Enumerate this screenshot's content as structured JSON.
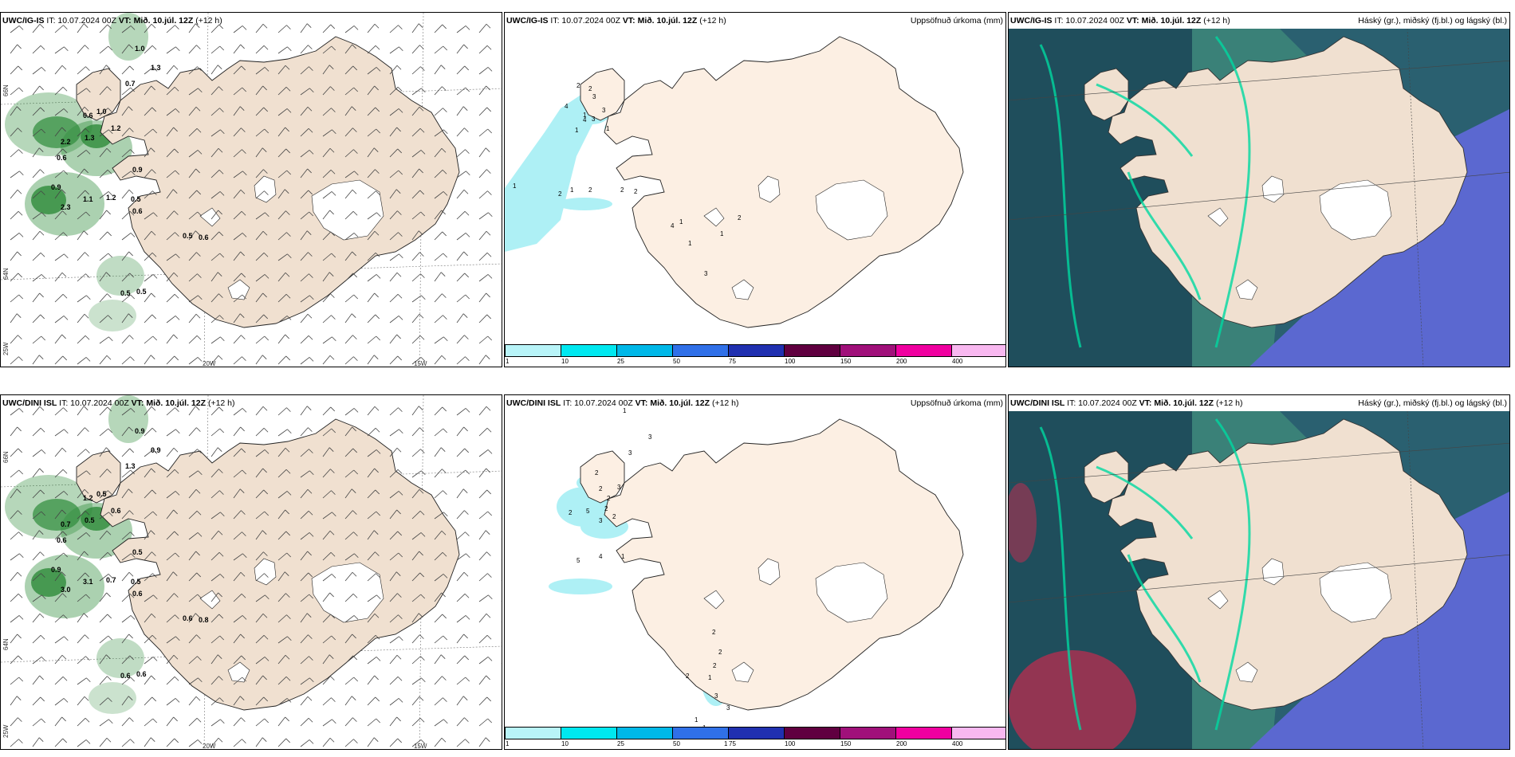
{
  "rows": [
    {
      "model": "UWC/IG-IS",
      "it_text": "IT: 10.07.2024 00Z",
      "vt_label": "VT:",
      "vt_value": "Mið. 10.júl. 12Z",
      "lead": "(+12 h)",
      "precip_title": "Uppsöfnuð úrkoma (mm)",
      "cloud_title": "Háský (gr.), miðský (fj.bl.) og lágský (bl.)",
      "wind_labels": [
        "1.0",
        "1.3",
        "0.7",
        "0.6",
        "1.0",
        "1.2",
        "2.2",
        "1.3",
        "0.6",
        "0.9",
        "0.9",
        "2.3",
        "1.1",
        "1.2",
        "0.5",
        "0.6",
        "0.5",
        "0.6",
        "0.5",
        "0.5"
      ],
      "precip_labels": [
        "2",
        "2",
        "3",
        "4",
        "3",
        "1",
        "1",
        "4",
        "3",
        "1",
        "1",
        "2",
        "1",
        "2",
        "2",
        "2",
        "4",
        "1",
        "2",
        "1",
        "1",
        "3"
      ]
    },
    {
      "model": "UWC/DINI ISL",
      "it_text": "IT: 10.07.2024 00Z",
      "vt_label": "VT:",
      "vt_value": "Mið. 10.júl. 12Z",
      "lead": "(+12 h)",
      "precip_title": "Uppsöfnuð úrkoma (mm)",
      "cloud_title": "Háský (gr.), miðský (fj.bl.) og lágský (bl.)",
      "wind_labels": [
        "0.9",
        "0.9",
        "1.3",
        "1.2",
        "0.5",
        "0.6",
        "0.7",
        "0.5",
        "0.6",
        "0.5",
        "0.9",
        "3.0",
        "3.1",
        "0.7",
        "0.5",
        "0.6",
        "0.6",
        "0.8",
        "0.6",
        "0.6"
      ],
      "precip_labels": [
        "1",
        "3",
        "3",
        "2",
        "2",
        "3",
        "2",
        "2",
        "2",
        "5",
        "3",
        "2",
        "5",
        "4",
        "1",
        "2",
        "2",
        "2",
        "1",
        "2",
        "3",
        "3",
        "1",
        "1",
        "1",
        "1"
      ]
    }
  ],
  "lon_labels": [
    "25W",
    "20W",
    "15W"
  ],
  "lat_labels": [
    "66N",
    "64N"
  ],
  "colorbar": {
    "ticks": [
      "1",
      "10",
      "25",
      "50",
      "75",
      "100",
      "150",
      "200",
      "400"
    ],
    "colors": [
      "#b8f4f8",
      "#00e8f0",
      "#00b8e8",
      "#3070e8",
      "#2030b0",
      "#600040",
      "#a0107a",
      "#f000a0",
      "#f8b8f0"
    ]
  },
  "colors": {
    "land": "#f0e0d0",
    "land_precip": "#fcefe3",
    "glacier": "#ffffff",
    "ocean_cloud": "#2a6070"
  }
}
